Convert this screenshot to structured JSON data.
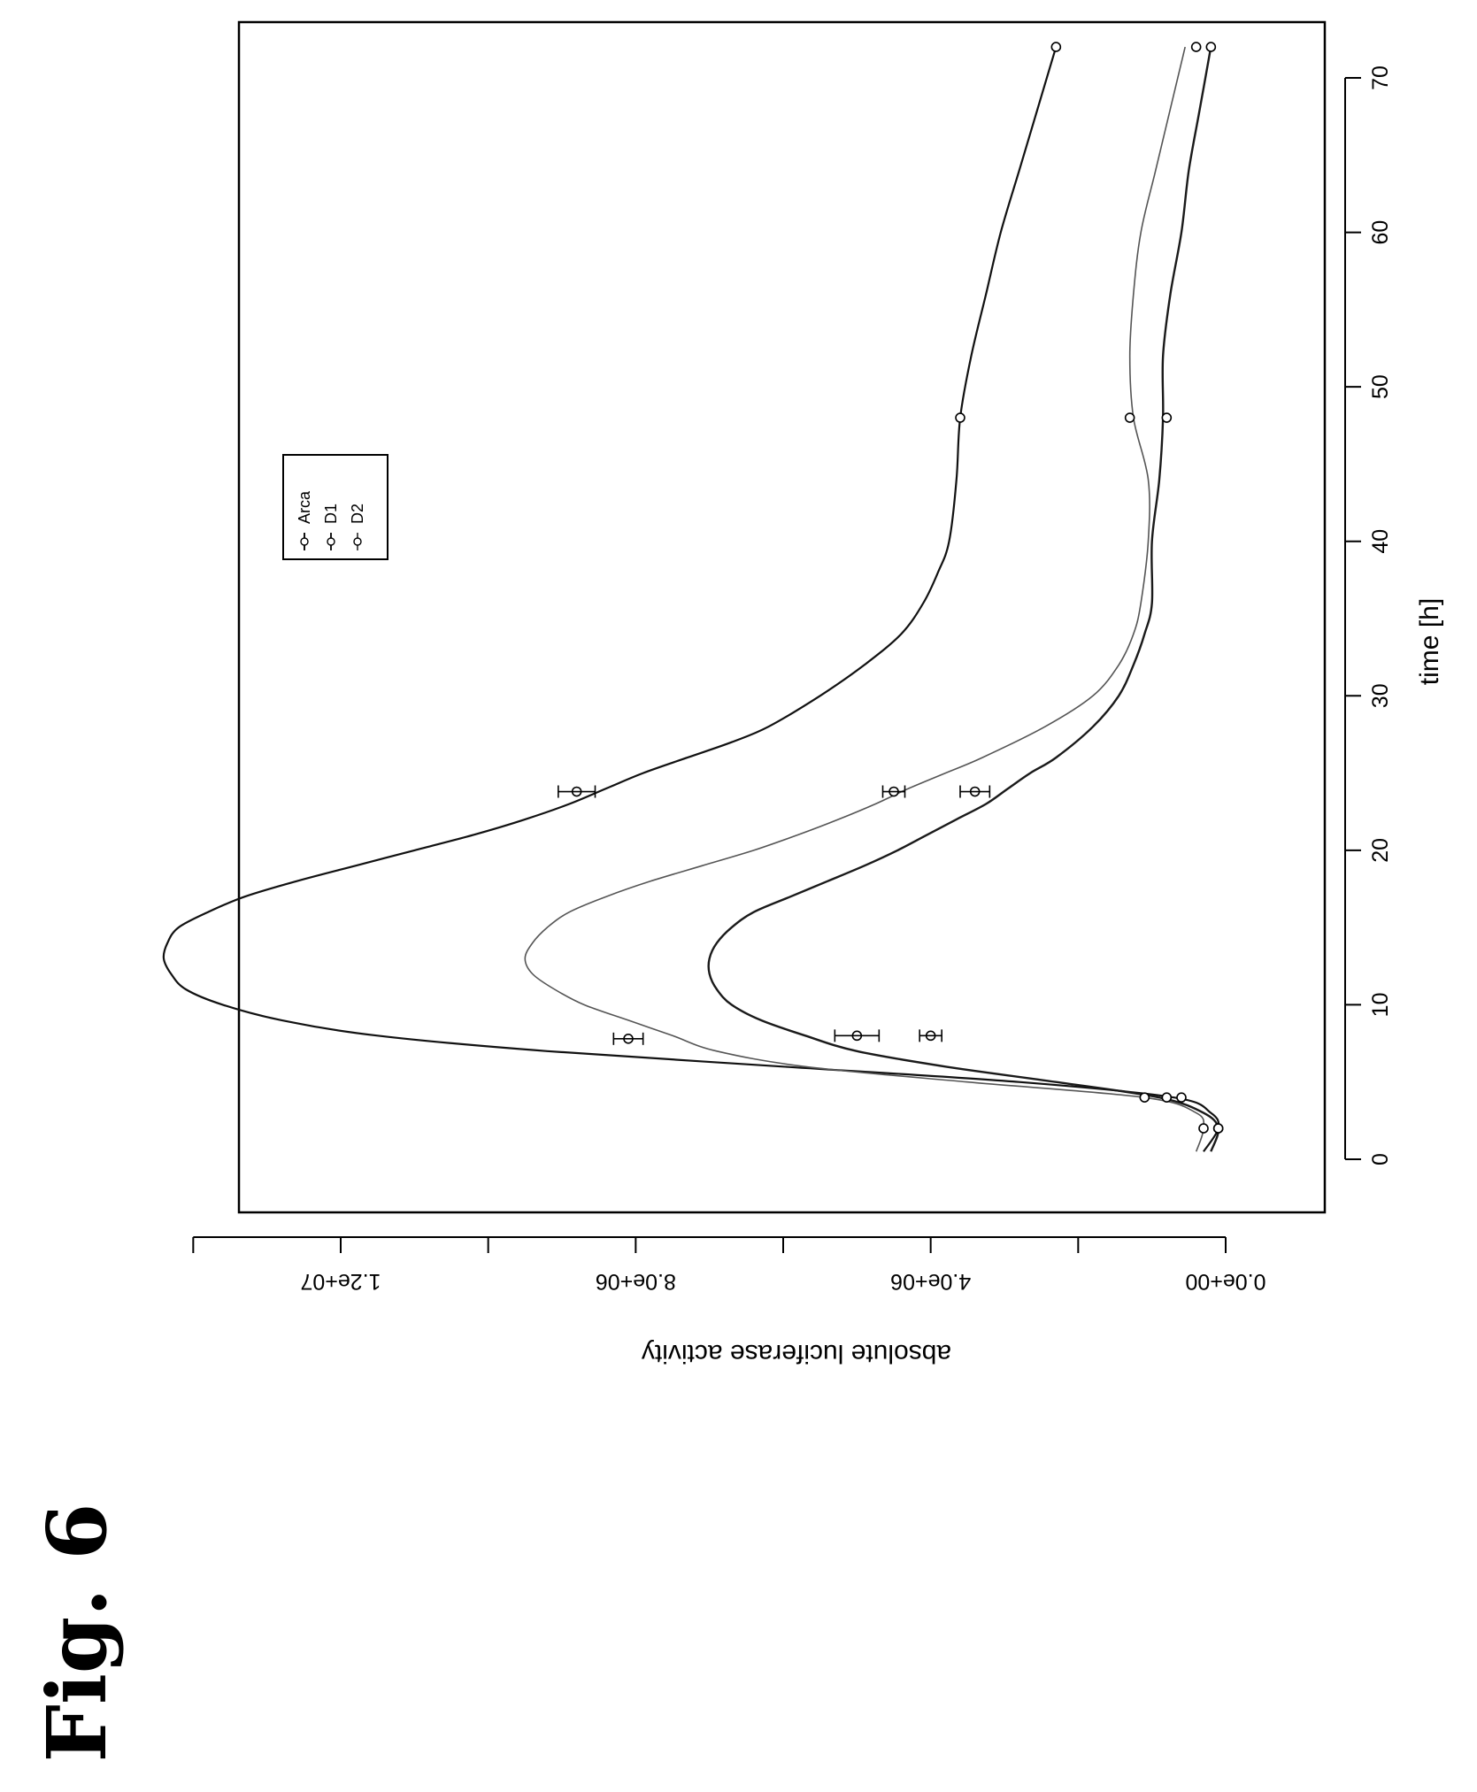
{
  "figure_label": "Fig. 6",
  "chart_data": {
    "type": "line",
    "title": "",
    "xlabel": "time [h]",
    "ylabel": "absolute luciferase activity",
    "xlim": [
      -3,
      74
    ],
    "ylim": [
      -300000,
      14400000
    ],
    "x_ticks": [
      0,
      10,
      20,
      30,
      40,
      50,
      60,
      70
    ],
    "x_tick_labels": [
      "0",
      "10",
      "20",
      "30",
      "40",
      "50",
      "60",
      "70"
    ],
    "y_ticks": [
      0,
      2000000,
      4000000,
      6000000,
      8000000,
      10000000,
      12000000,
      14000000
    ],
    "y_tick_labels": [
      "0.0e+00",
      "4.0e+06",
      "8.0e+06",
      "1.2e+07"
    ],
    "y_labeled_ticks": [
      0,
      4000000,
      8000000,
      12000000
    ],
    "grid": false,
    "legend_position": "top-right",
    "series": [
      {
        "name": "Arca",
        "curve": [
          [
            0.5,
            300000
          ],
          [
            2,
            100000
          ],
          [
            3,
            200000
          ],
          [
            4,
            700000
          ],
          [
            5,
            2800000
          ],
          [
            6,
            6000000
          ],
          [
            7,
            9200000
          ],
          [
            8,
            11500000
          ],
          [
            9,
            12800000
          ],
          [
            10,
            13600000
          ],
          [
            11,
            14100000
          ],
          [
            12,
            14300000
          ],
          [
            13,
            14400000
          ],
          [
            14,
            14350000
          ],
          [
            15,
            14200000
          ],
          [
            16,
            13800000
          ],
          [
            17,
            13300000
          ],
          [
            18,
            12600000
          ],
          [
            19,
            11800000
          ],
          [
            20,
            11000000
          ],
          [
            21,
            10200000
          ],
          [
            22,
            9500000
          ],
          [
            23,
            8900000
          ],
          [
            24,
            8400000
          ],
          [
            25,
            7900000
          ],
          [
            26,
            7300000
          ],
          [
            27,
            6700000
          ],
          [
            28,
            6200000
          ],
          [
            30,
            5500000
          ],
          [
            32,
            4900000
          ],
          [
            34,
            4400000
          ],
          [
            36,
            4100000
          ],
          [
            38,
            3900000
          ],
          [
            40,
            3750000
          ],
          [
            44,
            3650000
          ],
          [
            48,
            3600000
          ],
          [
            52,
            3450000
          ],
          [
            56,
            3250000
          ],
          [
            60,
            3050000
          ],
          [
            64,
            2800000
          ],
          [
            68,
            2550000
          ],
          [
            72,
            2300000
          ]
        ],
        "points": [
          [
            2,
            100000
          ],
          [
            4,
            600000
          ],
          [
            7.8,
            8100000
          ],
          [
            23.8,
            8800000
          ],
          [
            48,
            3600000
          ],
          [
            72,
            2300000
          ]
        ],
        "errors": [
          [
            7.8,
            200000
          ],
          [
            23.8,
            250000
          ]
        ]
      },
      {
        "name": "D1",
        "curve": [
          [
            0.5,
            200000
          ],
          [
            2,
            100000
          ],
          [
            3,
            300000
          ],
          [
            4,
            900000
          ],
          [
            5,
            2300000
          ],
          [
            6,
            3800000
          ],
          [
            7,
            5000000
          ],
          [
            8,
            5700000
          ],
          [
            9,
            6300000
          ],
          [
            10,
            6700000
          ],
          [
            11,
            6900000
          ],
          [
            12,
            7000000
          ],
          [
            13,
            7000000
          ],
          [
            14,
            6900000
          ],
          [
            15,
            6700000
          ],
          [
            16,
            6400000
          ],
          [
            17,
            5900000
          ],
          [
            18,
            5400000
          ],
          [
            19,
            4900000
          ],
          [
            20,
            4450000
          ],
          [
            21,
            4050000
          ],
          [
            22,
            3650000
          ],
          [
            23,
            3250000
          ],
          [
            24,
            2950000
          ],
          [
            25,
            2650000
          ],
          [
            26,
            2300000
          ],
          [
            28,
            1800000
          ],
          [
            30,
            1450000
          ],
          [
            32,
            1250000
          ],
          [
            34,
            1100000
          ],
          [
            36,
            1000000
          ],
          [
            40,
            1000000
          ],
          [
            44,
            900000
          ],
          [
            48,
            850000
          ],
          [
            52,
            850000
          ],
          [
            56,
            750000
          ],
          [
            60,
            600000
          ],
          [
            64,
            500000
          ],
          [
            68,
            350000
          ],
          [
            72,
            200000
          ]
        ],
        "points": [
          [
            2,
            100000
          ],
          [
            4,
            800000
          ],
          [
            8,
            4000000
          ],
          [
            23.8,
            3400000
          ],
          [
            48,
            800000
          ],
          [
            72,
            200000
          ]
        ],
        "errors": [
          [
            8,
            150000
          ],
          [
            23.8,
            200000
          ]
        ]
      },
      {
        "name": "D2",
        "curve": [
          [
            0.5,
            400000
          ],
          [
            2,
            300000
          ],
          [
            3,
            400000
          ],
          [
            4,
            1100000
          ],
          [
            5,
            3500000
          ],
          [
            6,
            5700000
          ],
          [
            7,
            6900000
          ],
          [
            8,
            7500000
          ],
          [
            9,
            8100000
          ],
          [
            10,
            8700000
          ],
          [
            11,
            9100000
          ],
          [
            12,
            9400000
          ],
          [
            13,
            9500000
          ],
          [
            14,
            9400000
          ],
          [
            15,
            9200000
          ],
          [
            16,
            8900000
          ],
          [
            17,
            8400000
          ],
          [
            18,
            7800000
          ],
          [
            19,
            7100000
          ],
          [
            20,
            6400000
          ],
          [
            21,
            5800000
          ],
          [
            22,
            5250000
          ],
          [
            23,
            4750000
          ],
          [
            24,
            4300000
          ],
          [
            25,
            3800000
          ],
          [
            26,
            3300000
          ],
          [
            28,
            2450000
          ],
          [
            30,
            1800000
          ],
          [
            32,
            1450000
          ],
          [
            34,
            1250000
          ],
          [
            36,
            1150000
          ],
          [
            40,
            1050000
          ],
          [
            44,
            1050000
          ],
          [
            48,
            1250000
          ],
          [
            52,
            1300000
          ],
          [
            56,
            1250000
          ],
          [
            60,
            1150000
          ],
          [
            64,
            950000
          ],
          [
            68,
            750000
          ],
          [
            72,
            550000
          ]
        ],
        "points": [
          [
            2,
            300000
          ],
          [
            4,
            1100000
          ],
          [
            8,
            5000000
          ],
          [
            23.8,
            4500000
          ],
          [
            48,
            1300000
          ],
          [
            72,
            400000
          ]
        ],
        "errors": [
          [
            8,
            300000
          ],
          [
            23.8,
            150000
          ]
        ]
      }
    ]
  }
}
